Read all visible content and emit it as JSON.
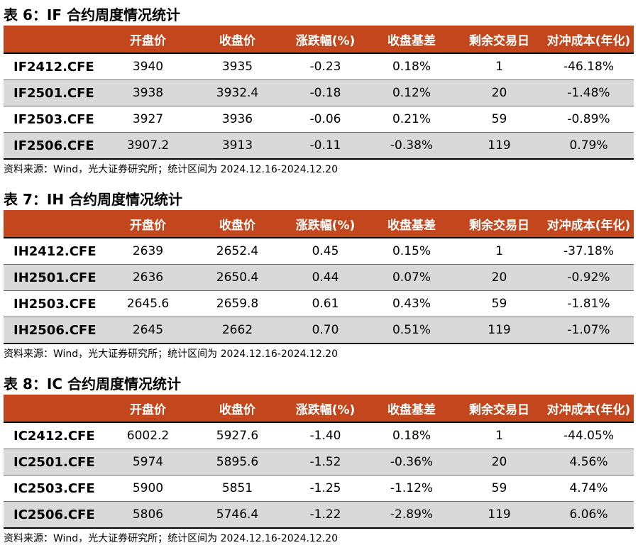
{
  "sections": [
    {
      "title": "表 6：IF 合约周度情况统计",
      "headers": [
        "",
        "开盘价",
        "收盘价",
        "涨跌幅(%)",
        "收盘基差",
        "剩余交易日",
        "对冲成本(年化)"
      ],
      "rows": [
        [
          "IF2412.CFE",
          "3940",
          "3935",
          "-0.23",
          "0.18%",
          "1",
          "-46.18%"
        ],
        [
          "IF2501.CFE",
          "3938",
          "3932.4",
          "-0.18",
          "0.12%",
          "20",
          "-1.48%"
        ],
        [
          "IF2503.CFE",
          "3927",
          "3936",
          "-0.06",
          "0.21%",
          "59",
          "-0.89%"
        ],
        [
          "IF2506.CFE",
          "3907.2",
          "3913",
          "-0.11",
          "-0.38%",
          "119",
          "0.79%"
        ]
      ],
      "source": "资料来源：Wind，光大证券研究所；统计区间为 2024.12.16-2024.12.20"
    },
    {
      "title": "表 7：IH 合约周度情况统计",
      "headers": [
        "",
        "开盘价",
        "收盘价",
        "涨跌幅(%)",
        "收盘基差",
        "剩余交易日",
        "对冲成本(年化)"
      ],
      "rows": [
        [
          "IH2412.CFE",
          "2639",
          "2652.4",
          "0.45",
          "0.15%",
          "1",
          "-37.18%"
        ],
        [
          "IH2501.CFE",
          "2636",
          "2650.4",
          "0.44",
          "0.07%",
          "20",
          "-0.92%"
        ],
        [
          "IH2503.CFE",
          "2645.6",
          "2659.8",
          "0.61",
          "0.43%",
          "59",
          "-1.81%"
        ],
        [
          "IH2506.CFE",
          "2645",
          "2662",
          "0.70",
          "0.51%",
          "119",
          "-1.07%"
        ]
      ],
      "source": "资料来源：Wind，光大证券研究所；统计区间为 2024.12.16-2024.12.20"
    },
    {
      "title": "表 8：IC 合约周度情况统计",
      "headers": [
        "",
        "开盘价",
        "收盘价",
        "涨跌幅(%)",
        "收盘基差",
        "剩余交易日",
        "对冲成本(年化)"
      ],
      "rows": [
        [
          "IC2412.CFE",
          "6002.2",
          "5927.6",
          "-1.40",
          "0.18%",
          "1",
          "-44.05%"
        ],
        [
          "IC2501.CFE",
          "5974",
          "5895.6",
          "-1.52",
          "-0.36%",
          "20",
          "4.56%"
        ],
        [
          "IC2503.CFE",
          "5900",
          "5851",
          "-1.25",
          "-1.12%",
          "59",
          "4.74%"
        ],
        [
          "IC2506.CFE",
          "5806",
          "5746.4",
          "-1.22",
          "-2.89%",
          "119",
          "6.06%"
        ]
      ],
      "source": "资料来源：Wind，光大证券研究所；统计区间为 2024.12.16-2024.12.20"
    }
  ]
}
